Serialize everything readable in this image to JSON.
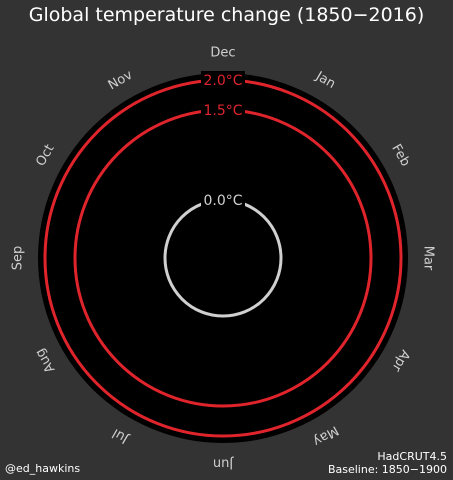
{
  "figure": {
    "title": "Global temperature change (1850−2016)",
    "credit": "@ed_hawkins",
    "dataset": "HadCRUT4.5",
    "baseline": "Baseline: 1850−1900"
  },
  "colors": {
    "background": "#333333",
    "disc": "#000000",
    "threshold_ring": "#e0242c",
    "zero_ring": "#d0d0d0",
    "month_label": "#cfcfcf"
  },
  "chart_data": {
    "type": "polar",
    "title": "Global temperature change (1850−2016)",
    "months": [
      "Jan",
      "Feb",
      "Mar",
      "Apr",
      "May",
      "Jun",
      "Jul",
      "Aug",
      "Sep",
      "Oct",
      "Nov",
      "Dec"
    ],
    "rings": [
      {
        "value": 0.0,
        "label": "0.0°C",
        "color": "#d0d0d0"
      },
      {
        "value": 1.5,
        "label": "1.5°C",
        "color": "#e0242c"
      },
      {
        "value": 2.0,
        "label": "2.0°C",
        "color": "#e0242c"
      }
    ],
    "series": [],
    "grid": false
  }
}
